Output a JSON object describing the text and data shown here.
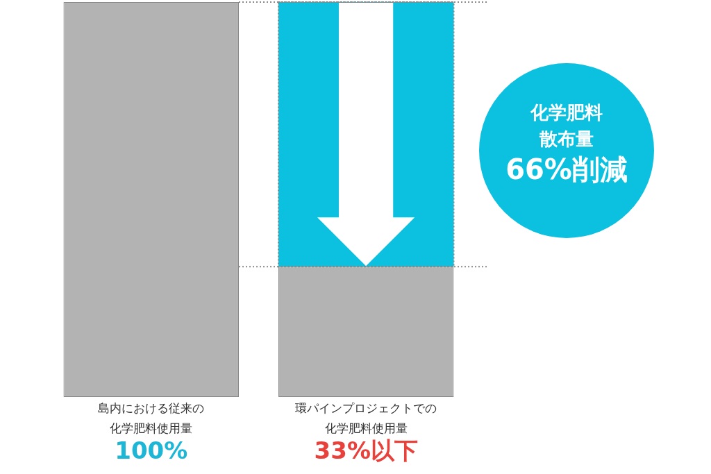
{
  "chart_data": {
    "type": "bar",
    "categories": [
      "島内における従来の化学肥料使用量",
      "環パインプロジェクトでの化学肥料使用量"
    ],
    "stacked": true,
    "series": [
      {
        "color": "#b3b3b3",
        "values": [
          100,
          33
        ],
        "value_labels": [
          "100%",
          "33%以下"
        ]
      },
      {
        "color": "#0cc0df",
        "values": [
          null,
          67
        ]
      }
    ],
    "ylim": [
      0,
      100
    ],
    "tick_labels": "x",
    "grid": false,
    "legend": false,
    "ref_lines": [
      {
        "axis": "y",
        "value": 100,
        "color": "#888888",
        "line_style": "dotted"
      },
      {
        "axis": "y",
        "value": 33,
        "color": "#888888",
        "line_style": "dotted"
      }
    ],
    "annotations": [
      "化学肥料",
      "散布量",
      "66%削減"
    ]
  }
}
